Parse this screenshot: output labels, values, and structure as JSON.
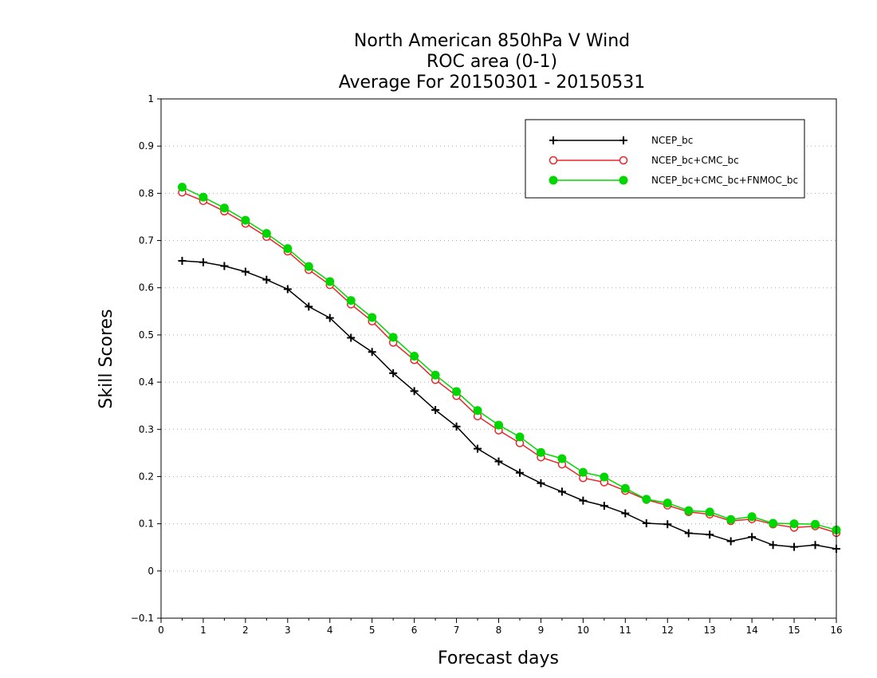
{
  "chart_data": {
    "type": "line",
    "title_lines": [
      "North American 850hPa V Wind",
      "ROC area (0-1)",
      "Average For 20150301 - 20150531"
    ],
    "xlabel": "Forecast days",
    "ylabel": "Skill Scores",
    "xlim": [
      0,
      16
    ],
    "ylim": [
      -0.1,
      1
    ],
    "x_ticks": [
      "0",
      "1",
      "2",
      "3",
      "4",
      "5",
      "6",
      "7",
      "8",
      "9",
      "10",
      "11",
      "12",
      "13",
      "14",
      "15",
      "16"
    ],
    "y_ticks": [
      "−0.1",
      "0",
      "0.1",
      "0.2",
      "0.3",
      "0.4",
      "0.5",
      "0.6",
      "0.7",
      "0.8",
      "0.9",
      "1"
    ],
    "grid": "horizontal dotted",
    "legend_position": "top-right",
    "x": [
      0.5,
      1,
      1.5,
      2,
      2.5,
      3,
      3.5,
      4,
      4.5,
      5,
      5.5,
      6,
      6.5,
      7,
      7.5,
      8,
      8.5,
      9,
      9.5,
      10,
      10.5,
      11,
      11.5,
      12,
      12.5,
      13,
      13.5,
      14,
      14.5,
      15,
      15.5,
      16
    ],
    "series": [
      {
        "name": "NCEP_bc",
        "color": "#000000",
        "marker": "plus",
        "values": [
          0.657,
          0.654,
          0.646,
          0.634,
          0.617,
          0.597,
          0.56,
          0.536,
          0.494,
          0.464,
          0.419,
          0.381,
          0.341,
          0.306,
          0.259,
          0.232,
          0.208,
          0.186,
          0.168,
          0.149,
          0.138,
          0.122,
          0.101,
          0.099,
          0.08,
          0.077,
          0.063,
          0.072,
          0.055,
          0.051,
          0.055,
          0.047
        ]
      },
      {
        "name": "NCEP_bc+CMC_bc",
        "color": "#e8262a",
        "marker": "open-circle",
        "values": [
          0.802,
          0.784,
          0.762,
          0.736,
          0.708,
          0.677,
          0.638,
          0.606,
          0.565,
          0.529,
          0.484,
          0.447,
          0.405,
          0.371,
          0.328,
          0.298,
          0.271,
          0.241,
          0.226,
          0.197,
          0.188,
          0.17,
          0.151,
          0.139,
          0.125,
          0.12,
          0.106,
          0.11,
          0.099,
          0.092,
          0.095,
          0.081
        ]
      },
      {
        "name": "NCEP_bc+CMC_bc+FNMOC_bc",
        "color": "#00d700",
        "marker": "filled-circle",
        "values": [
          0.813,
          0.792,
          0.769,
          0.743,
          0.715,
          0.683,
          0.645,
          0.613,
          0.573,
          0.537,
          0.495,
          0.455,
          0.415,
          0.38,
          0.34,
          0.309,
          0.284,
          0.251,
          0.238,
          0.209,
          0.199,
          0.175,
          0.152,
          0.144,
          0.128,
          0.125,
          0.109,
          0.115,
          0.101,
          0.1,
          0.099,
          0.087
        ]
      }
    ]
  }
}
